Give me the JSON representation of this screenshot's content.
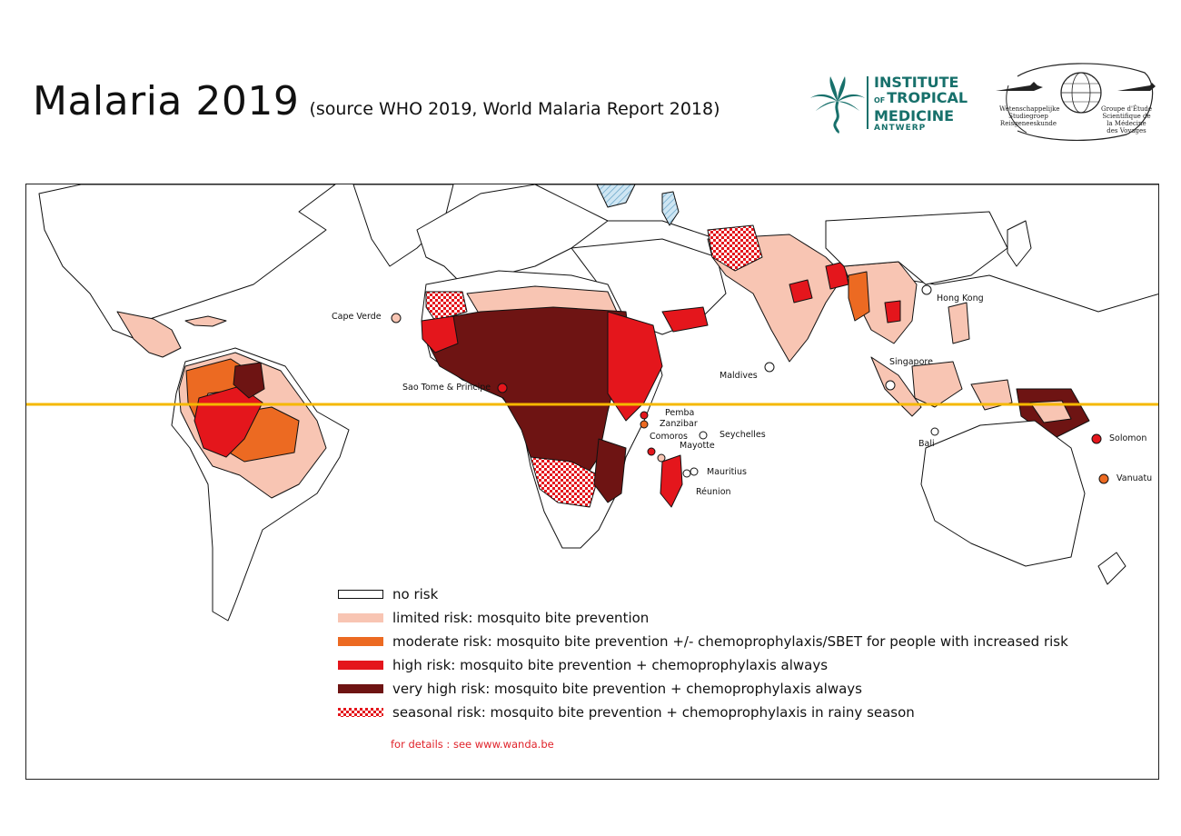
{
  "header": {
    "title": "Malaria 2019",
    "subtitle": "(source WHO 2019, World Malaria Report 2018)"
  },
  "logos": {
    "itm": {
      "line1": "INSTITUTE",
      "line2_small": "OF",
      "line2": "TROPICAL",
      "line3": "MEDICINE",
      "line4": "ANTWERP",
      "color": "#17706b"
    },
    "seal": {
      "left_text_1": "Wetenschappelijke",
      "left_text_2": "Studiegroep",
      "left_text_3": "Reisgeneeskunde",
      "right_text_1": "Groupe d'Étude",
      "right_text_2": "Scientifique de",
      "right_text_3": "la Médecine",
      "right_text_4": "des Voyages"
    }
  },
  "map": {
    "equator_color": "#f5b800",
    "place_labels": [
      "Cape Verde",
      "Sao Tome & Principe",
      "Maldives",
      "Hong Kong",
      "Singapore",
      "Pemba",
      "Zanzibar",
      "Seychelles",
      "Comoros",
      "Mayotte",
      "Mauritius",
      "Réunion",
      "Bali",
      "Solomon",
      "Vanuatu"
    ]
  },
  "legend": {
    "items": [
      {
        "label": "no risk",
        "color": "#ffffff",
        "pattern": "none"
      },
      {
        "label": "limited risk: mosquito bite prevention",
        "color": "#f8c5b3",
        "pattern": "none"
      },
      {
        "label": "moderate risk: mosquito bite prevention +/- chemoprophylaxis/SBET for people with increased risk",
        "color": "#ec6a22",
        "pattern": "none"
      },
      {
        "label": "high risk: mosquito bite prevention + chemoprophylaxis always",
        "color": "#e4161c",
        "pattern": "none"
      },
      {
        "label": "very high risk: mosquito bite prevention + chemoprophylaxis always",
        "color": "#6e1413",
        "pattern": "none"
      },
      {
        "label": "seasonal risk: mosquito bite prevention + chemoprophylaxis in rainy season",
        "color": "#e4161c",
        "pattern": "checker"
      }
    ],
    "details": "for details : see www.wanda.be"
  }
}
